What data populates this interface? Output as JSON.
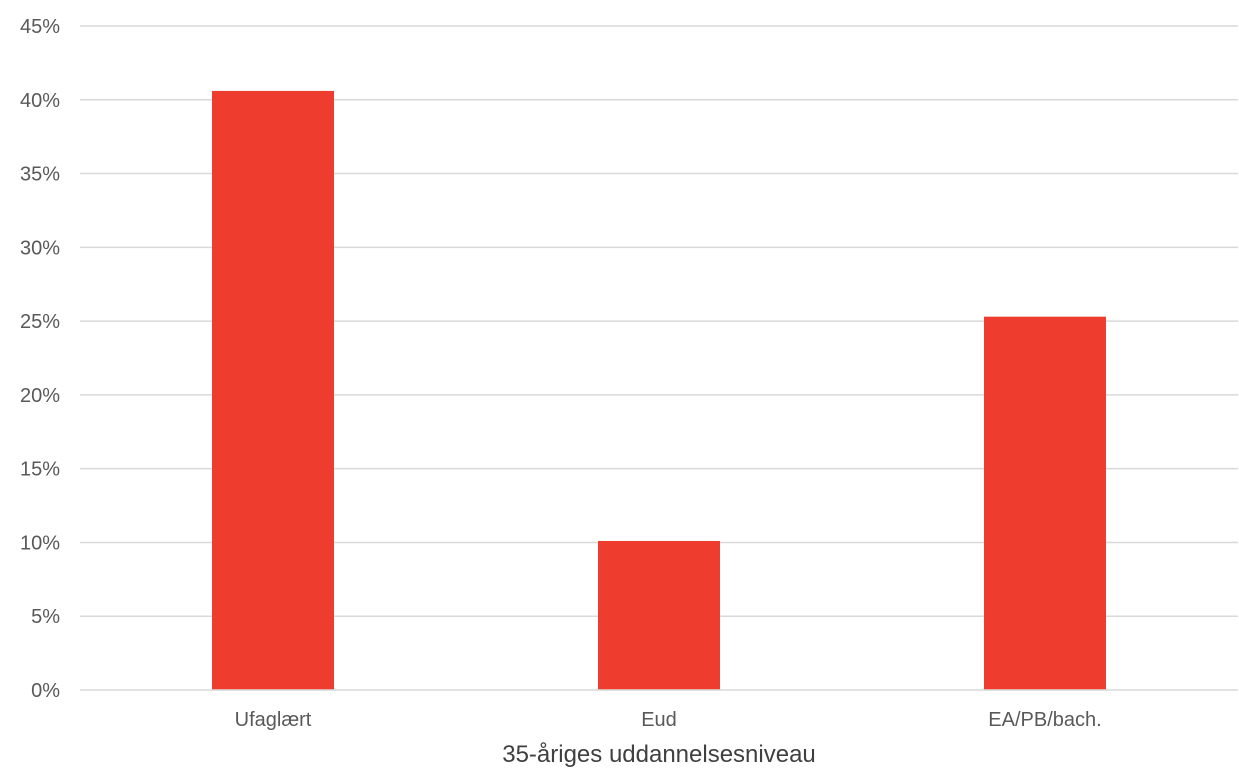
{
  "chart_data": {
    "type": "bar",
    "categories": [
      "Ufaglært",
      "Eud",
      "EA/PB/bach."
    ],
    "values": [
      40.6,
      10.1,
      25.3
    ],
    "xlabel": "35-åriges uddannelsesniveau",
    "ylabel": "",
    "ylim": [
      0,
      45
    ],
    "yticks": [
      0,
      5,
      10,
      15,
      20,
      25,
      30,
      35,
      40,
      45
    ],
    "ytick_suffix": "%",
    "grid": true,
    "legend": "none",
    "colors": {
      "bar": "#EE3D2E",
      "grid": "#D9D9D9",
      "text": "#595959"
    }
  }
}
